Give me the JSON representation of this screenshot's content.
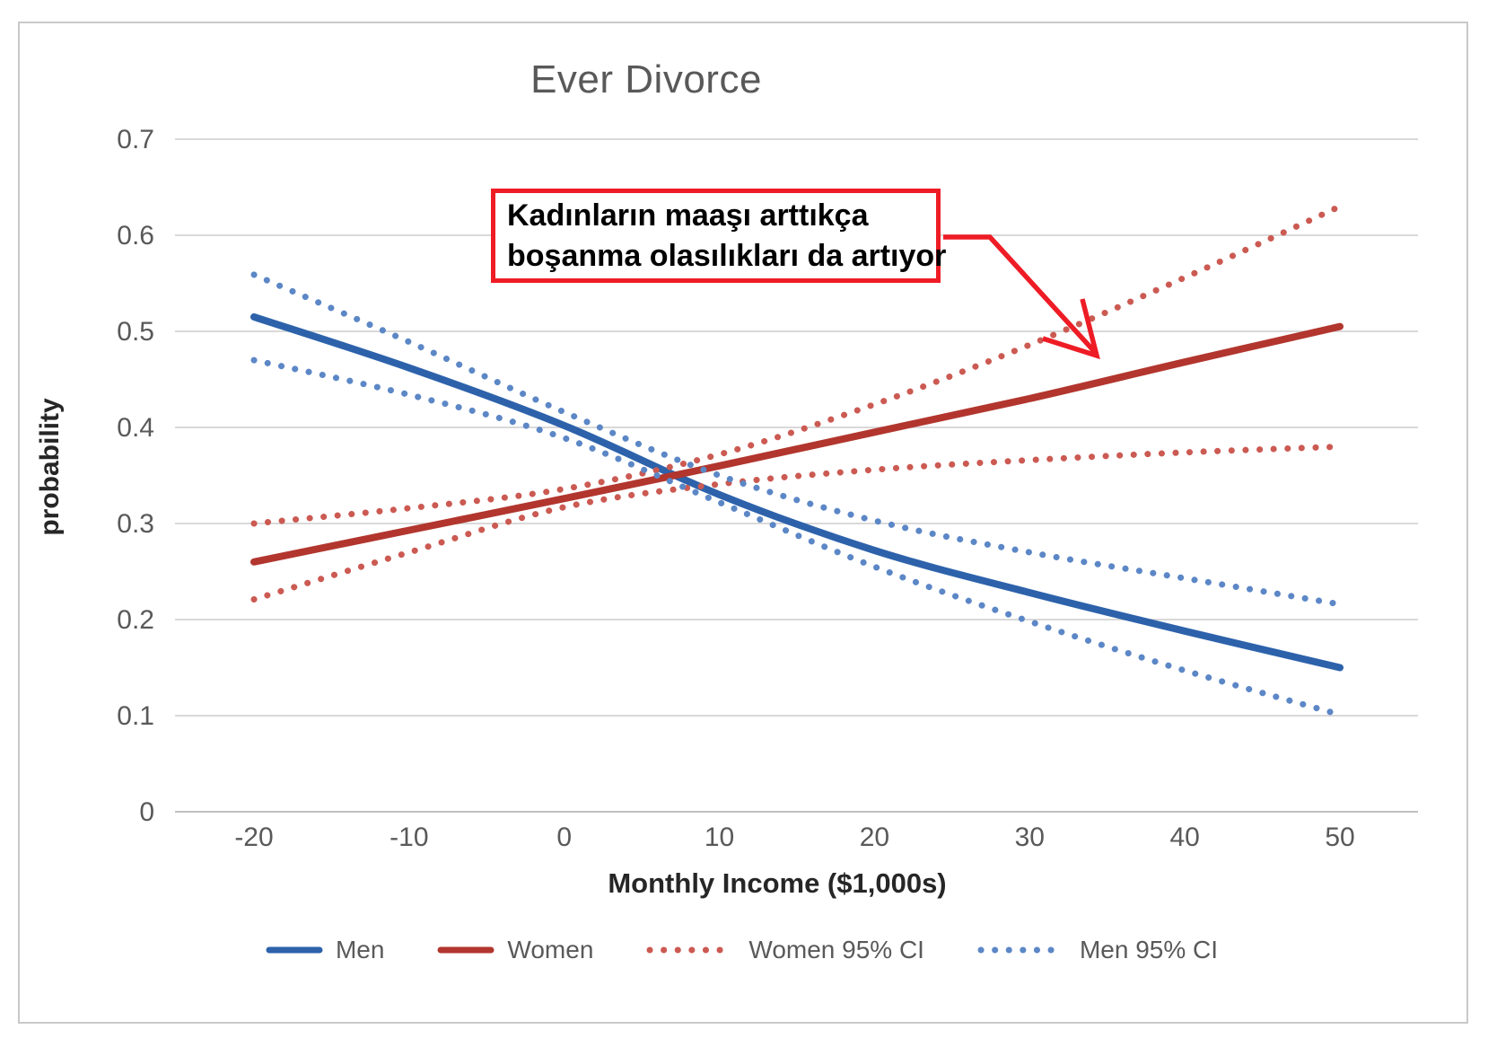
{
  "chart_data": {
    "type": "line",
    "title": "Ever Divorce",
    "xlabel": "Monthly Income ($1,000s)",
    "ylabel": "probability",
    "grid": "horizontal",
    "legend_position": "bottom",
    "xlim": [
      -25,
      55
    ],
    "ylim": [
      0,
      0.7
    ],
    "x_ticks": [
      -20,
      -10,
      0,
      10,
      20,
      30,
      40,
      50
    ],
    "y_ticks": [
      0,
      0.1,
      0.2,
      0.3,
      0.4,
      0.5,
      0.6,
      0.7
    ],
    "x": [
      -20,
      -10,
      0,
      10,
      20,
      30,
      40,
      50
    ],
    "series": [
      {
        "name": "Men",
        "style": "solid",
        "color": "#2d62ab",
        "values": [
          0.515,
          0.462,
          0.402,
          0.33,
          0.272,
          0.228,
          0.188,
          0.15
        ]
      },
      {
        "name": "Women",
        "style": "solid",
        "color": "#b2362e",
        "values": [
          0.26,
          0.293,
          0.326,
          0.36,
          0.395,
          0.43,
          0.468,
          0.505
        ]
      },
      {
        "name": "Women 95% CI",
        "style": "dotted",
        "color": "#cb5a52",
        "upper": [
          0.3,
          0.316,
          0.336,
          0.372,
          0.424,
          0.486,
          0.556,
          0.63
        ],
        "lower": [
          0.221,
          0.27,
          0.317,
          0.341,
          0.356,
          0.366,
          0.374,
          0.38
        ]
      },
      {
        "name": "Men 95% CI",
        "style": "dotted",
        "color": "#5c87c6",
        "upper": [
          0.559,
          0.489,
          0.416,
          0.35,
          0.303,
          0.27,
          0.243,
          0.216
        ],
        "lower": [
          0.47,
          0.434,
          0.389,
          0.322,
          0.255,
          0.198,
          0.147,
          0.101
        ]
      }
    ]
  },
  "legend": {
    "items": [
      {
        "label": "Men",
        "style": "solid",
        "color": "#2d62ab"
      },
      {
        "label": "Women",
        "style": "solid",
        "color": "#b2362e"
      },
      {
        "label": "Women 95% CI",
        "style": "dotted",
        "color": "#cb5a52"
      },
      {
        "label": "Men 95% CI",
        "style": "dotted",
        "color": "#5c87c6"
      }
    ]
  },
  "annotation": {
    "line1": "Kadınların maaşı arttıkça",
    "line2": "boşanma olasılıkları da artıyor",
    "border_color": "#ee1c25",
    "arrow_color": "#ee1c25",
    "text_color": "#000000"
  },
  "colors": {
    "gridline": "#d9d9d9",
    "baseline": "#c0c0c0",
    "tick_text": "#595959",
    "title_text": "#595959",
    "axis_title_text": "#262626",
    "frame_border": "#c9c9c9"
  }
}
